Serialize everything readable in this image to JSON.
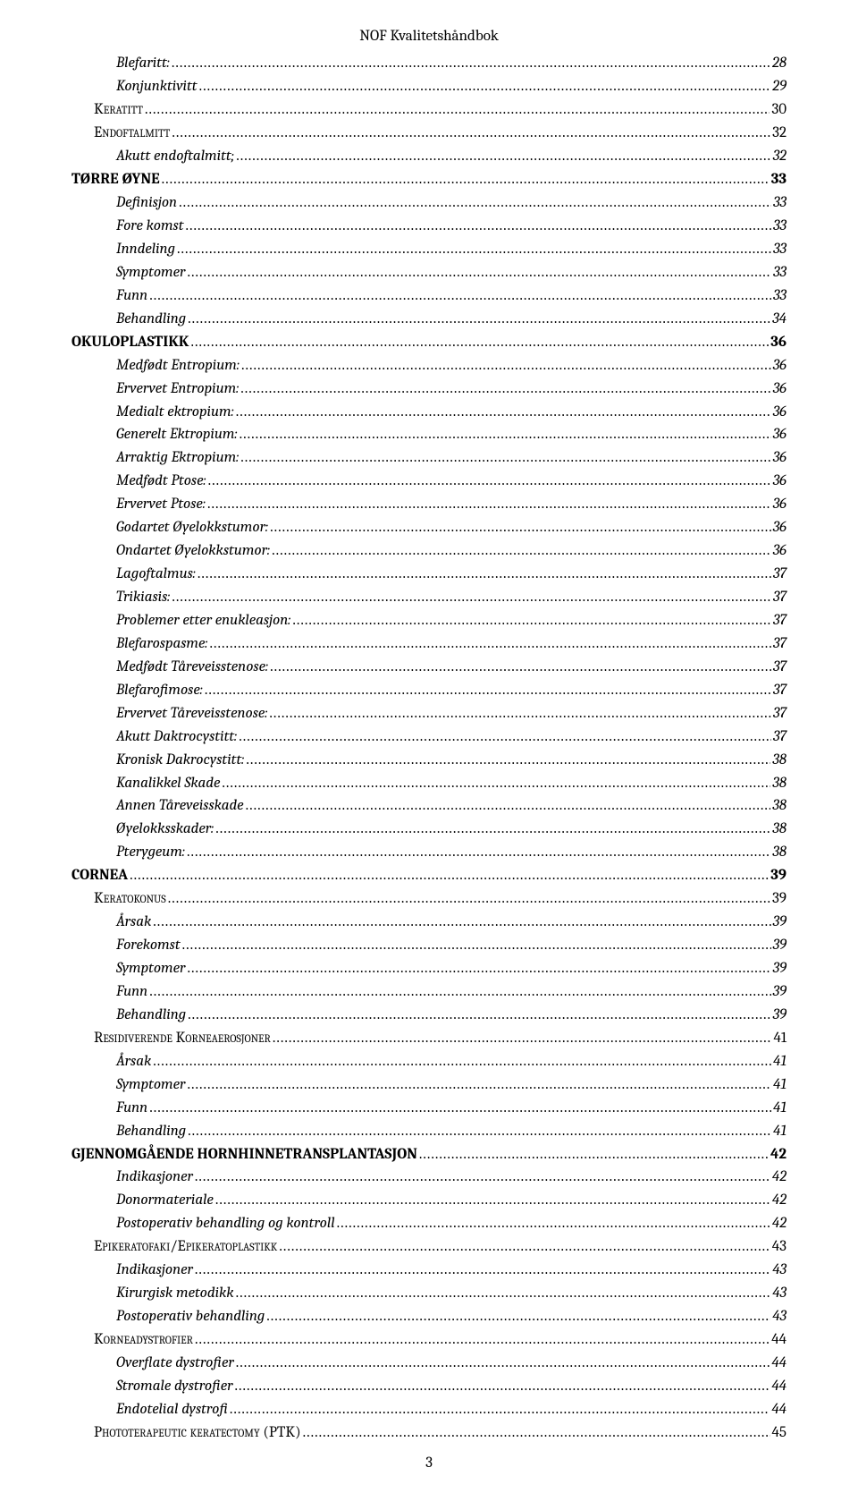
{
  "header": {
    "title": "NOF Kvalitetshåndbok"
  },
  "page_number": "3",
  "toc": [
    {
      "label": "Blefaritt:",
      "page": "28",
      "level": 2,
      "style": "italic"
    },
    {
      "label": "Konjunktivitt",
      "page": "29",
      "level": 2,
      "style": "italic"
    },
    {
      "label": "Keratitt",
      "page": "30",
      "level": 1,
      "style": "smallcaps"
    },
    {
      "label": "Endoftalmitt",
      "page": "32",
      "level": 1,
      "style": "smallcaps"
    },
    {
      "label": "Akutt endoftalmitt;",
      "page": "32",
      "level": 2,
      "style": "italic"
    },
    {
      "label": "TØRRE ØYNE",
      "page": "33",
      "level": 0,
      "style": "bold"
    },
    {
      "label": "Definisjon",
      "page": "33",
      "level": 2,
      "style": "italic"
    },
    {
      "label": "Fore komst",
      "page": "33",
      "level": 2,
      "style": "italic"
    },
    {
      "label": "Inndeling",
      "page": "33",
      "level": 2,
      "style": "italic"
    },
    {
      "label": "Symptomer",
      "page": "33",
      "level": 2,
      "style": "italic"
    },
    {
      "label": "Funn",
      "page": "33",
      "level": 2,
      "style": "italic"
    },
    {
      "label": "Behandling",
      "page": "34",
      "level": 2,
      "style": "italic"
    },
    {
      "label": "OKULOPLASTIKK",
      "page": "36",
      "level": 0,
      "style": "bold"
    },
    {
      "label": "Medfødt Entropium:",
      "page": "36",
      "level": 2,
      "style": "italic"
    },
    {
      "label": "Ervervet Entropium:",
      "page": "36",
      "level": 2,
      "style": "italic"
    },
    {
      "label": "Medialt ektropium:",
      "page": "36",
      "level": 2,
      "style": "italic"
    },
    {
      "label": "Generelt Ektropium:",
      "page": "36",
      "level": 2,
      "style": "italic"
    },
    {
      "label": "Arraktig Ektropium:",
      "page": "36",
      "level": 2,
      "style": "italic"
    },
    {
      "label": "Medfødt Ptose:",
      "page": "36",
      "level": 2,
      "style": "italic"
    },
    {
      "label": "Ervervet Ptose:",
      "page": "36",
      "level": 2,
      "style": "italic"
    },
    {
      "label": "Godartet Øyelokkstumor:",
      "page": "36",
      "level": 2,
      "style": "italic"
    },
    {
      "label": "Ondartet Øyelokkstumor:",
      "page": "36",
      "level": 2,
      "style": "italic"
    },
    {
      "label": "Lagoftalmus:",
      "page": "37",
      "level": 2,
      "style": "italic"
    },
    {
      "label": "Trikiasis:",
      "page": "37",
      "level": 2,
      "style": "italic"
    },
    {
      "label": "Problemer etter enukleasjon:",
      "page": "37",
      "level": 2,
      "style": "italic"
    },
    {
      "label": "Blefarospasme:",
      "page": "37",
      "level": 2,
      "style": "italic"
    },
    {
      "label": "Medfødt Tåreveisstenose:",
      "page": "37",
      "level": 2,
      "style": "italic"
    },
    {
      "label": "Blefarofimose:",
      "page": "37",
      "level": 2,
      "style": "italic"
    },
    {
      "label": "Ervervet Tåreveisstenose: ",
      "page": "37",
      "level": 2,
      "style": "italic"
    },
    {
      "label": "Akutt  Daktrocystitt:",
      "page": "37",
      "level": 2,
      "style": "italic"
    },
    {
      "label": "Kronisk Dakrocystitt:",
      "page": "38",
      "level": 2,
      "style": "italic"
    },
    {
      "label": "Kanalikkel Skade",
      "page": "38",
      "level": 2,
      "style": "italic"
    },
    {
      "label": "Annen Tåreveisskade",
      "page": "38",
      "level": 2,
      "style": "italic"
    },
    {
      "label": "Øyelokksskader:",
      "page": "38",
      "level": 2,
      "style": "italic"
    },
    {
      "label": "Pterygeum:",
      "page": "38",
      "level": 2,
      "style": "italic"
    },
    {
      "label": "CORNEA",
      "page": "39",
      "level": 0,
      "style": "bold"
    },
    {
      "label": "Keratokonus",
      "page": "39",
      "level": 1,
      "style": "smallcaps"
    },
    {
      "label": "Årsak",
      "page": "39",
      "level": 2,
      "style": "italic"
    },
    {
      "label": "Forekomst",
      "page": "39",
      "level": 2,
      "style": "italic"
    },
    {
      "label": "Symptomer",
      "page": "39",
      "level": 2,
      "style": "italic"
    },
    {
      "label": "Funn",
      "page": "39",
      "level": 2,
      "style": "italic"
    },
    {
      "label": "Behandling",
      "page": "39",
      "level": 2,
      "style": "italic"
    },
    {
      "label": "Residiverende Korneaerosjoner",
      "page": "41",
      "level": 1,
      "style": "smallcaps"
    },
    {
      "label": "Årsak",
      "page": "41",
      "level": 2,
      "style": "italic"
    },
    {
      "label": "Symptomer",
      "page": "41",
      "level": 2,
      "style": "italic"
    },
    {
      "label": "Funn",
      "page": "41",
      "level": 2,
      "style": "italic"
    },
    {
      "label": "Behandling",
      "page": "41",
      "level": 2,
      "style": "italic"
    },
    {
      "label": "GJENNOMGÅENDE HORNHINNETRANSPLANTASJON",
      "page": "42",
      "level": 0,
      "style": "bold"
    },
    {
      "label": "Indikasjoner",
      "page": "42",
      "level": 2,
      "style": "italic"
    },
    {
      "label": "Donormateriale",
      "page": "42",
      "level": 2,
      "style": "italic"
    },
    {
      "label": "Postoperativ behandling og kontroll",
      "page": "42",
      "level": 2,
      "style": "italic"
    },
    {
      "label": "Epikeratofaki/Epikeratoplastikk",
      "page": "43",
      "level": 1,
      "style": "smallcaps"
    },
    {
      "label": "Indikasjoner",
      "page": "43",
      "level": 2,
      "style": "italic"
    },
    {
      "label": "Kirurgisk metodikk",
      "page": "43",
      "level": 2,
      "style": "italic"
    },
    {
      "label": "Postoperativ behandling",
      "page": "43",
      "level": 2,
      "style": "italic"
    },
    {
      "label": "Korneadystrofier",
      "page": "44",
      "level": 1,
      "style": "smallcaps"
    },
    {
      "label": "Overflate dystrofier",
      "page": "44",
      "level": 2,
      "style": "italic"
    },
    {
      "label": "Stromale dystrofier",
      "page": "44",
      "level": 2,
      "style": "italic"
    },
    {
      "label": "Endotelial dystrofi",
      "page": "44",
      "level": 2,
      "style": "italic"
    },
    {
      "label": "Phototerapeutic keratectomy (PTK)",
      "page": "45",
      "level": 1,
      "style": "smallcaps"
    }
  ]
}
